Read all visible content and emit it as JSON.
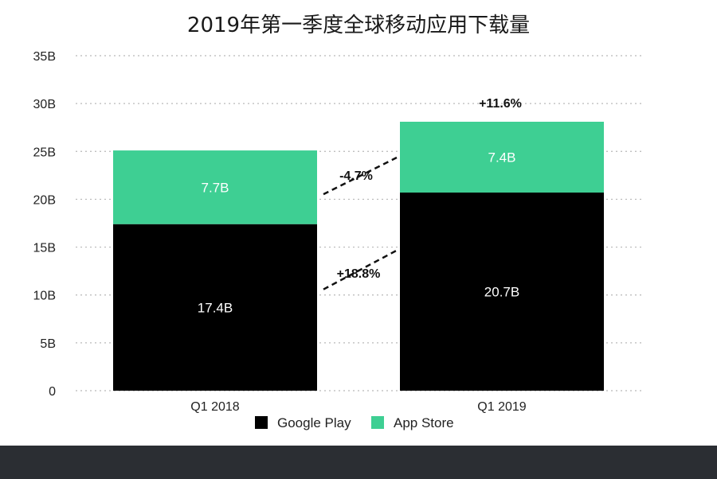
{
  "chart_data": {
    "type": "bar",
    "stacked": true,
    "title": "2019年第一季度全球移动应用下载量",
    "xlabel": "",
    "ylabel": "",
    "categories": [
      "Q1 2018",
      "Q1 2019"
    ],
    "series": [
      {
        "name": "Google Play",
        "values": [
          17.4,
          20.7
        ],
        "labels": [
          "17.4B",
          "20.7B"
        ],
        "color": "#000000",
        "label_color": "#ffffff"
      },
      {
        "name": "App Store",
        "values": [
          7.7,
          7.4
        ],
        "labels": [
          "7.7B",
          "7.4B"
        ],
        "color": "#3ecf93",
        "label_color": "#ffffff"
      }
    ],
    "ylim": [
      0,
      35
    ],
    "yticks": [
      0,
      5,
      10,
      15,
      20,
      25,
      30,
      35
    ],
    "ytick_labels": [
      "0",
      "5B",
      "10B",
      "15B",
      "20B",
      "25B",
      "30B",
      "35B"
    ],
    "grid": true,
    "legend_position": "bottom-center",
    "annotations": {
      "google_play_change": "+18.8%",
      "app_store_change": "-4.7%",
      "total_change": "+11.6%"
    }
  }
}
